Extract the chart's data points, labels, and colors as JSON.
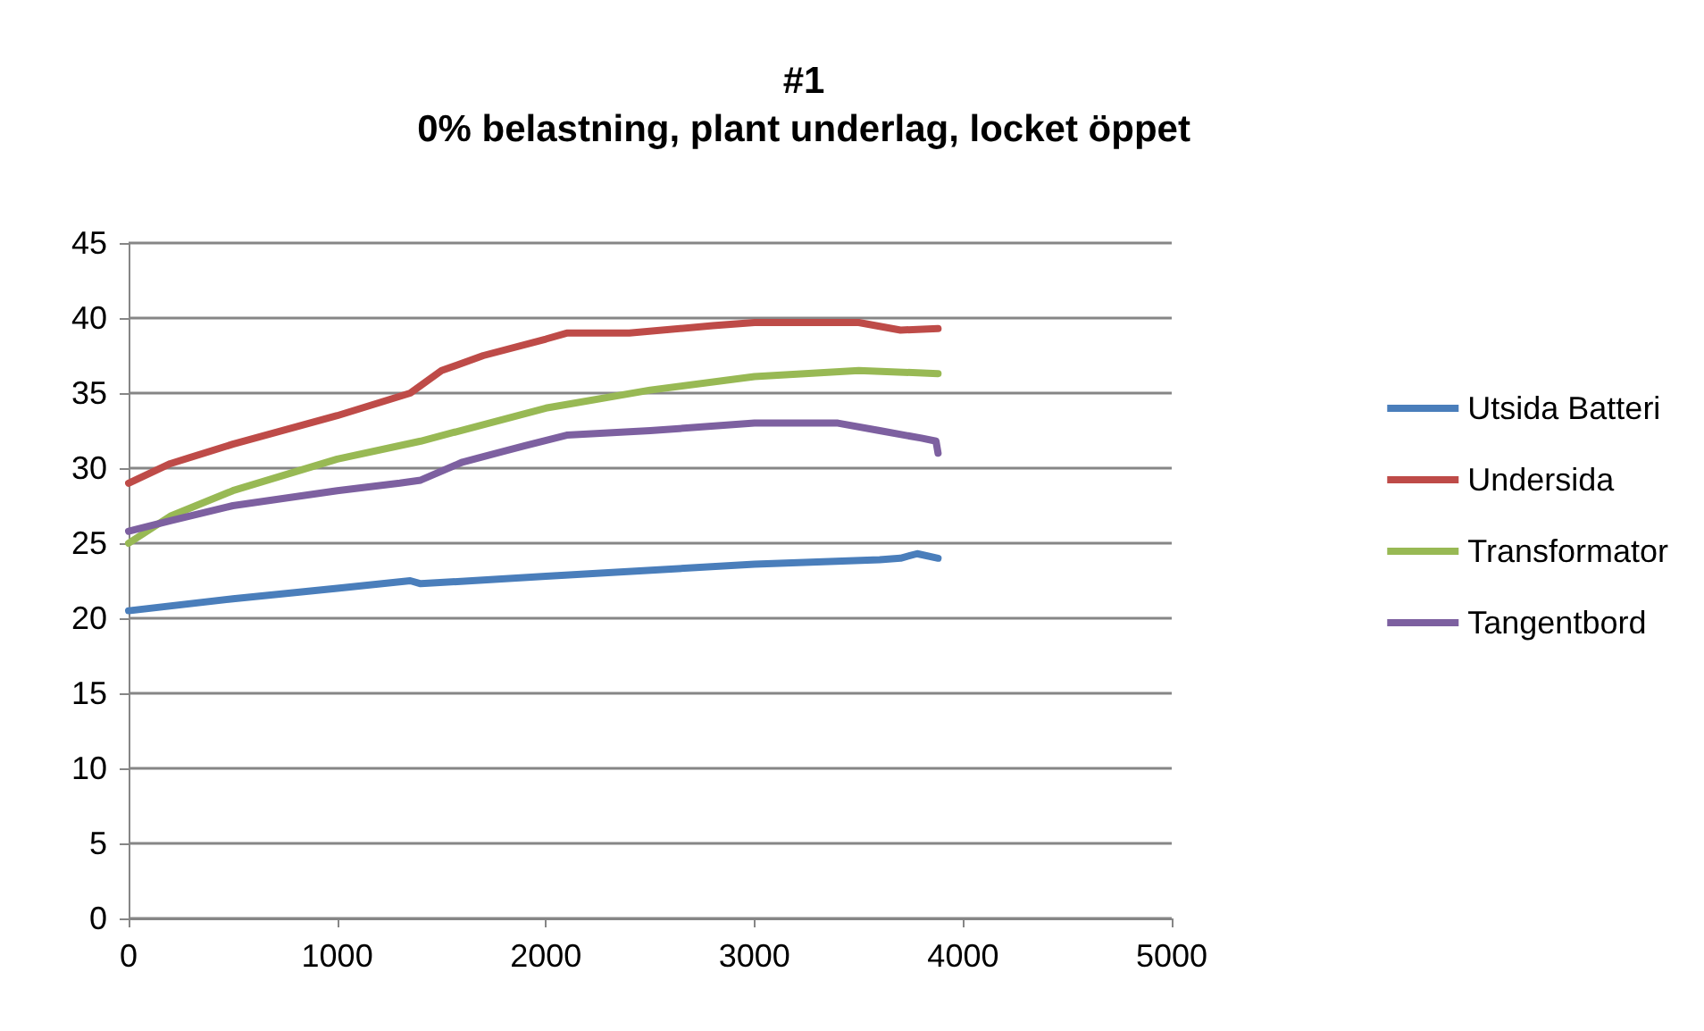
{
  "chart_data": {
    "type": "line",
    "title": "#1",
    "subtitle": "0% belastning, plant underlag, locket öppet",
    "xlim": [
      0,
      5000
    ],
    "xticks": [
      0,
      1000,
      2000,
      3000,
      4000,
      5000
    ],
    "ylim": [
      0,
      45
    ],
    "yticks": [
      0,
      5,
      10,
      15,
      20,
      25,
      30,
      35,
      40,
      45
    ],
    "grid": "y",
    "legend": "right",
    "marker": "none",
    "line_style": "solid",
    "series": [
      {
        "name": "Utsida Batteri",
        "color": "#4a7ebb",
        "x": [
          0,
          500,
          1000,
          1350,
          1400,
          2000,
          3000,
          3600,
          3700,
          3780,
          3880
        ],
        "values": [
          20.5,
          21.3,
          22.0,
          22.5,
          22.3,
          22.8,
          23.6,
          23.9,
          24.0,
          24.3,
          24.0
        ]
      },
      {
        "name": "Undersida",
        "color": "#be4b48",
        "x": [
          0,
          200,
          500,
          1000,
          1350,
          1500,
          1700,
          2000,
          2100,
          2400,
          2800,
          3000,
          3500,
          3700,
          3880
        ],
        "values": [
          29,
          30.3,
          31.6,
          33.5,
          35.0,
          36.5,
          37.5,
          38.6,
          39,
          39,
          39.5,
          39.7,
          39.7,
          39.2,
          39.3
        ]
      },
      {
        "name": "Transformator",
        "color": "#98b954",
        "x": [
          0,
          200,
          500,
          1000,
          1400,
          2000,
          2500,
          3000,
          3500,
          3880
        ],
        "values": [
          25,
          26.8,
          28.5,
          30.6,
          31.8,
          34.0,
          35.2,
          36.1,
          36.5,
          36.3
        ]
      },
      {
        "name": "Tangentbord",
        "color": "#7d60a0",
        "x": [
          0,
          200,
          500,
          1000,
          1300,
          1400,
          1600,
          1900,
          2100,
          2500,
          3000,
          3400,
          3600,
          3800,
          3870,
          3880
        ],
        "values": [
          25.8,
          26.5,
          27.5,
          28.5,
          29.0,
          29.2,
          30.4,
          31.5,
          32.2,
          32.5,
          33.0,
          33.0,
          32.5,
          32.0,
          31.8,
          31.0
        ]
      }
    ]
  }
}
